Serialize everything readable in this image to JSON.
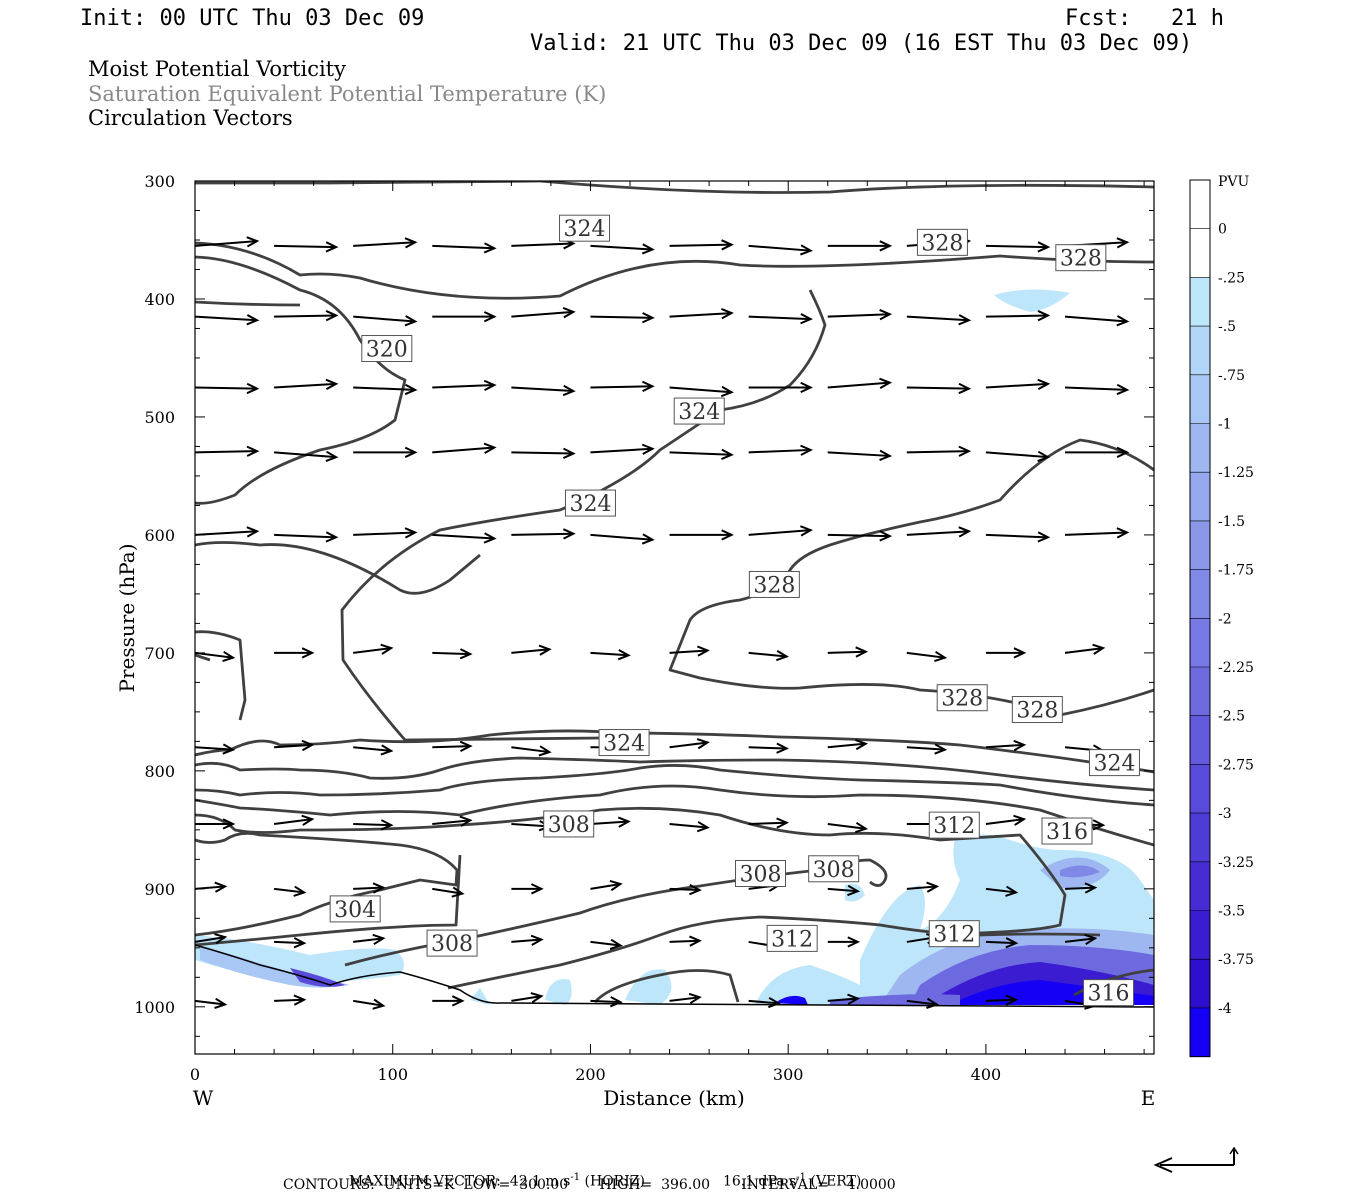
{
  "header": {
    "init": "Init: 00 UTC Thu 03 Dec 09",
    "fcst": "Fcst:   21 h",
    "valid": "Valid: 21 UTC Thu 03 Dec 09 (16 EST Thu 03 Dec 09)",
    "field1": "Moist Potential Vorticity",
    "field2": "Saturation Equivalent Potential Temperature (K)",
    "field3": "Circulation Vectors"
  },
  "colors": {
    "axis": "#000000",
    "contour": "#404040",
    "vector": "#000000",
    "label_box": "#ffffff"
  },
  "chart_data": {
    "type": "cross-section",
    "xlabel": "Distance (km)",
    "ylabel": "Pressure (hPa)",
    "xlim": [
      0,
      485
    ],
    "ylim": [
      1040,
      300
    ],
    "x_ticks": [
      0,
      100,
      200,
      300,
      400
    ],
    "y_ticks": [
      300,
      400,
      500,
      600,
      700,
      800,
      900,
      1000
    ],
    "x_end_labels": {
      "left": "W",
      "right": "E"
    },
    "colorbar": {
      "unit": "PVU",
      "levels": [
        "0",
        "-.25",
        "-.5",
        "-.75",
        "-1",
        "-1.25",
        "-1.5",
        "-1.75",
        "-2",
        "-2.25",
        "-2.5",
        "-2.75",
        "-3",
        "-3.25",
        "-3.5",
        "-3.75",
        "-4"
      ],
      "colors": [
        "#ffffff",
        "#ffffff",
        "#bde6fb",
        "#b3d6f8",
        "#a9c7f4",
        "#9fb7f1",
        "#95a8ee",
        "#8b98ea",
        "#8189e7",
        "#7779e4",
        "#6d6ae0",
        "#635add",
        "#594bda",
        "#4f3bd6",
        "#452cd3",
        "#3b1cd0",
        "#2f0dcc",
        "#1500f5"
      ]
    },
    "contour_labels": [
      {
        "x": 197,
        "p": 340,
        "label": "324"
      },
      {
        "x": 378,
        "p": 352,
        "label": "328"
      },
      {
        "x": 448,
        "p": 365,
        "label": "328"
      },
      {
        "x": 97,
        "p": 442,
        "label": "320"
      },
      {
        "x": 255,
        "p": 495,
        "label": "324"
      },
      {
        "x": 200,
        "p": 573,
        "label": "324"
      },
      {
        "x": 293,
        "p": 642,
        "label": "328"
      },
      {
        "x": 388,
        "p": 738,
        "label": "328"
      },
      {
        "x": 426,
        "p": 748,
        "label": "328"
      },
      {
        "x": 217,
        "p": 776,
        "label": "324"
      },
      {
        "x": 465,
        "p": 793,
        "label": "324"
      },
      {
        "x": 189,
        "p": 845,
        "label": "308"
      },
      {
        "x": 384,
        "p": 846,
        "label": "312"
      },
      {
        "x": 441,
        "p": 851,
        "label": "316"
      },
      {
        "x": 286,
        "p": 887,
        "label": "308"
      },
      {
        "x": 323,
        "p": 883,
        "label": "308"
      },
      {
        "x": 81,
        "p": 917,
        "label": "304"
      },
      {
        "x": 130,
        "p": 946,
        "label": "308"
      },
      {
        "x": 302,
        "p": 942,
        "label": "312"
      },
      {
        "x": 384,
        "p": 938,
        "label": "312"
      },
      {
        "x": 462,
        "p": 988,
        "label": "316"
      }
    ],
    "footer": {
      "max_vector": "MAXIMUM VECTOR:  42.1 m s",
      "max_vector_unit": "-1",
      "horiz": " (HORIZ)",
      "vert_val": "16.1 dPa s",
      "vert_unit": "-1",
      "vert": " (VERT)",
      "contours": "CONTOURS:  UNITS=K  LOW=  300.00       HIGH=  396.00       INTERVAL=    4.0000"
    }
  }
}
